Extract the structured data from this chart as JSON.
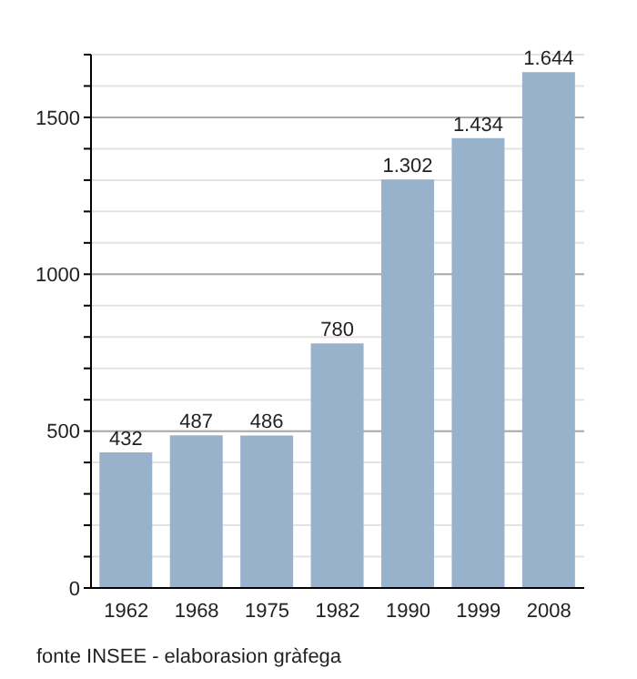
{
  "chart_data": {
    "type": "bar",
    "categories": [
      "1962",
      "1968",
      "1975",
      "1982",
      "1990",
      "1999",
      "2008"
    ],
    "values": [
      432,
      487,
      486,
      780,
      1302,
      1434,
      1644
    ],
    "value_labels": [
      "432",
      "487",
      "486",
      "780",
      "1.302",
      "1.434",
      "1.644"
    ],
    "color": "#98b2cc",
    "ylim": [
      0,
      1700
    ],
    "yticks": [
      0,
      {
        "value": 100,
        "label": null
      },
      {
        "value": 200,
        "label": null
      },
      {
        "value": 300,
        "label": null
      },
      {
        "value": 400,
        "label": null
      },
      500,
      {
        "value": 600,
        "label": null
      },
      {
        "value": 700,
        "label": null
      },
      {
        "value": 800,
        "label": null
      },
      {
        "value": 900,
        "label": null
      },
      1000,
      {
        "value": 1100,
        "label": null
      },
      {
        "value": 1200,
        "label": null
      },
      {
        "value": 1300,
        "label": null
      },
      {
        "value": 1400,
        "label": null
      },
      1500,
      {
        "value": 1600,
        "label": null
      },
      {
        "value": 1700,
        "label": null
      }
    ],
    "grid": true,
    "annotations": [
      "fonte INSEE - elaborasion gràfega"
    ]
  }
}
